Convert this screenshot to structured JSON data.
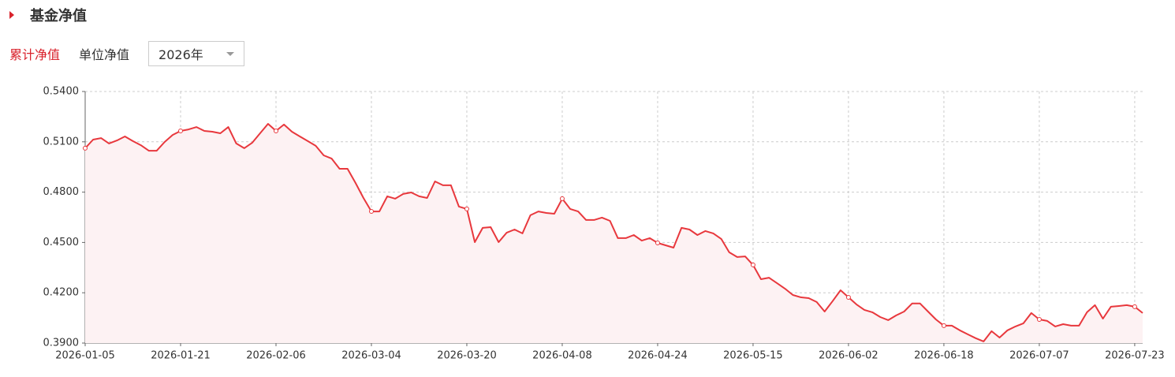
{
  "header": {
    "title": "基金净值"
  },
  "tabs": [
    "累计净值",
    "单位净值"
  ],
  "selector": "2026年",
  "chart_data": {
    "type": "line",
    "color": "#e8383d",
    "area_color": "#fdf2f3",
    "grid": true,
    "categories": [
      "2026-01-05",
      null,
      null,
      null,
      null,
      null,
      null,
      null,
      null,
      null,
      null,
      null,
      "2026-01-21",
      null,
      null,
      null,
      null,
      null,
      null,
      null,
      null,
      null,
      null,
      null,
      "2026-02-06",
      null,
      null,
      null,
      null,
      null,
      null,
      null,
      null,
      null,
      null,
      null,
      "2026-03-04",
      null,
      null,
      null,
      null,
      null,
      null,
      null,
      null,
      null,
      null,
      null,
      "2026-03-20",
      null,
      null,
      null,
      null,
      null,
      null,
      null,
      null,
      null,
      null,
      null,
      "2026-04-08",
      null,
      null,
      null,
      null,
      null,
      null,
      null,
      null,
      null,
      null,
      null,
      "2026-04-24",
      null,
      null,
      null,
      null,
      null,
      null,
      null,
      null,
      null,
      null,
      null,
      "2026-05-15",
      null,
      null,
      null,
      null,
      null,
      null,
      null,
      null,
      null,
      null,
      null,
      "2026-06-02",
      null,
      null,
      null,
      null,
      null,
      null,
      null,
      null,
      null,
      null,
      null,
      "2026-06-18",
      null,
      null,
      null,
      null,
      null,
      null,
      null,
      null,
      null,
      null,
      null,
      "2026-07-07",
      null,
      null,
      null,
      null,
      null,
      null,
      null,
      null,
      null,
      null,
      null,
      "2026-07-23",
      null
    ],
    "values": [
      0.5062,
      0.5113,
      0.5122,
      0.509,
      0.5108,
      0.5132,
      0.5104,
      0.508,
      0.5047,
      0.5047,
      0.5099,
      0.5141,
      0.5165,
      0.5174,
      0.5188,
      0.5165,
      0.516,
      0.5151,
      0.5188,
      0.509,
      0.5062,
      0.5094,
      0.5151,
      0.5207,
      0.5165,
      0.5203,
      0.516,
      0.5132,
      0.5104,
      0.5076,
      0.5019,
      0.5,
      0.4939,
      0.4939,
      0.4855,
      0.4765,
      0.4685,
      0.4685,
      0.4775,
      0.4761,
      0.4789,
      0.4798,
      0.4775,
      0.4765,
      0.4864,
      0.4841,
      0.4841,
      0.4714,
      0.47,
      0.4502,
      0.4587,
      0.4591,
      0.4502,
      0.4558,
      0.4577,
      0.4554,
      0.4662,
      0.4685,
      0.4676,
      0.4671,
      0.4761,
      0.47,
      0.4685,
      0.4634,
      0.4634,
      0.4648,
      0.4629,
      0.4526,
      0.4526,
      0.4544,
      0.4511,
      0.4526,
      0.4497,
      0.4483,
      0.4469,
      0.4587,
      0.4577,
      0.4544,
      0.4568,
      0.4554,
      0.4521,
      0.4441,
      0.4413,
      0.4417,
      0.4366,
      0.4281,
      0.429,
      0.4258,
      0.4225,
      0.4187,
      0.4173,
      0.4168,
      0.4145,
      0.4088,
      0.415,
      0.4215,
      0.4173,
      0.4131,
      0.4098,
      0.4084,
      0.4055,
      0.4037,
      0.4065,
      0.4088,
      0.4136,
      0.4136,
      0.4088,
      0.4041,
      0.4004,
      0.4004,
      0.3976,
      0.3952,
      0.3929,
      0.391,
      0.3971,
      0.3933,
      0.3976,
      0.3999,
      0.4018,
      0.4079,
      0.4041,
      0.4032,
      0.3999,
      0.4013,
      0.4004,
      0.4004,
      0.4084,
      0.4126,
      0.4046,
      0.4117,
      0.4121,
      0.4126,
      0.4117,
      0.4079
    ],
    "ylim": [
      0.39,
      0.54
    ],
    "yticks": [
      {
        "value": 0.39,
        "label": "0.3900"
      },
      {
        "value": 0.42,
        "label": "0.4200"
      },
      {
        "value": 0.45,
        "label": "0.4500"
      },
      {
        "value": 0.48,
        "label": "0.4800"
      },
      {
        "value": 0.51,
        "label": "0.5100"
      },
      {
        "value": 0.54,
        "label": "0.5400"
      }
    ]
  }
}
